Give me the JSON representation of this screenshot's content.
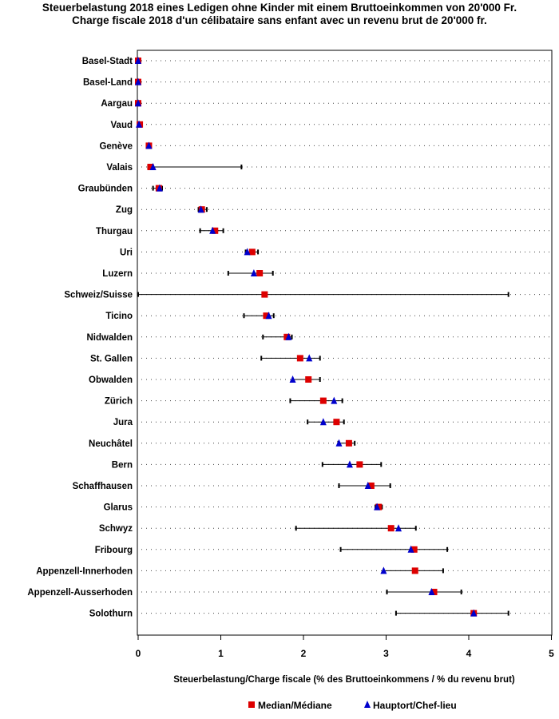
{
  "chart_data": {
    "type": "dot-range",
    "title": "Steuerbelastung 2018 eines Ledigen ohne Kinder mit einem Bruttoeinkommen von 20'000 Fr.",
    "subtitle": "Charge fiscale 2018 d'un célibataire sans enfant avec un revenu brut de 20'000 fr.",
    "xlabel": "Steuerbelastung/Charge fiscale (% des Bruttoeinkommens / % du revenu brut)",
    "xlim": [
      0,
      5
    ],
    "xticks": [
      "0",
      "1",
      "2",
      "3",
      "4",
      "5"
    ],
    "legend": {
      "median": "Median/Médiane",
      "capital": "Hauptort/Chef-lieu",
      "position": "bottom",
      "median_color": "#dd0000",
      "capital_color": "#0000cc"
    },
    "series": [
      {
        "name": "Basel-Stadt",
        "min": 0.0,
        "max": 0.0,
        "median": 0.0,
        "capital": 0.0
      },
      {
        "name": "Basel-Land",
        "min": 0.0,
        "max": 0.0,
        "median": 0.0,
        "capital": 0.0
      },
      {
        "name": "Aargau",
        "min": 0.0,
        "max": 0.0,
        "median": 0.0,
        "capital": 0.0
      },
      {
        "name": "Vaud",
        "min": 0.0,
        "max": 0.04,
        "median": 0.02,
        "capital": 0.01
      },
      {
        "name": "Genève",
        "min": 0.12,
        "max": 0.14,
        "median": 0.13,
        "capital": 0.13
      },
      {
        "name": "Valais",
        "min": 0.12,
        "max": 1.25,
        "median": 0.15,
        "capital": 0.18
      },
      {
        "name": "Graubünden",
        "min": 0.18,
        "max": 0.29,
        "median": 0.25,
        "capital": 0.26
      },
      {
        "name": "Zug",
        "min": 0.73,
        "max": 0.83,
        "median": 0.77,
        "capital": 0.76
      },
      {
        "name": "Thurgau",
        "min": 0.75,
        "max": 1.03,
        "median": 0.93,
        "capital": 0.9
      },
      {
        "name": "Uri",
        "min": 1.3,
        "max": 1.45,
        "median": 1.38,
        "capital": 1.32
      },
      {
        "name": "Luzern",
        "min": 1.09,
        "max": 1.63,
        "median": 1.47,
        "capital": 1.4
      },
      {
        "name": "Schweiz/Suisse",
        "min": 0.0,
        "max": 4.48,
        "median": 1.53,
        "capital": null
      },
      {
        "name": "Ticino",
        "min": 1.28,
        "max": 1.64,
        "median": 1.55,
        "capital": 1.58
      },
      {
        "name": "Nidwalden",
        "min": 1.51,
        "max": 1.86,
        "median": 1.8,
        "capital": 1.82
      },
      {
        "name": "St. Gallen",
        "min": 1.49,
        "max": 2.2,
        "median": 1.96,
        "capital": 2.07
      },
      {
        "name": "Obwalden",
        "min": 1.87,
        "max": 2.2,
        "median": 2.06,
        "capital": 1.87
      },
      {
        "name": "Zürich",
        "min": 1.84,
        "max": 2.47,
        "median": 2.24,
        "capital": 2.37
      },
      {
        "name": "Jura",
        "min": 2.05,
        "max": 2.49,
        "median": 2.4,
        "capital": 2.24
      },
      {
        "name": "Neuchâtel",
        "min": 2.42,
        "max": 2.62,
        "median": 2.55,
        "capital": 2.43
      },
      {
        "name": "Bern",
        "min": 2.23,
        "max": 2.94,
        "median": 2.68,
        "capital": 2.56
      },
      {
        "name": "Schaffhausen",
        "min": 2.43,
        "max": 3.05,
        "median": 2.82,
        "capital": 2.78
      },
      {
        "name": "Glarus",
        "min": 2.87,
        "max": 2.95,
        "median": 2.91,
        "capital": 2.89
      },
      {
        "name": "Schwyz",
        "min": 1.91,
        "max": 3.36,
        "median": 3.06,
        "capital": 3.15
      },
      {
        "name": "Fribourg",
        "min": 2.45,
        "max": 3.74,
        "median": 3.34,
        "capital": 3.3
      },
      {
        "name": "Appenzell-Innerhoden",
        "min": 2.97,
        "max": 3.69,
        "median": 3.35,
        "capital": 2.97
      },
      {
        "name": "Appenzell-Ausserhoden",
        "min": 3.01,
        "max": 3.91,
        "median": 3.58,
        "capital": 3.55
      },
      {
        "name": "Solothurn",
        "min": 3.12,
        "max": 4.48,
        "median": 4.06,
        "capital": 4.06
      }
    ]
  }
}
